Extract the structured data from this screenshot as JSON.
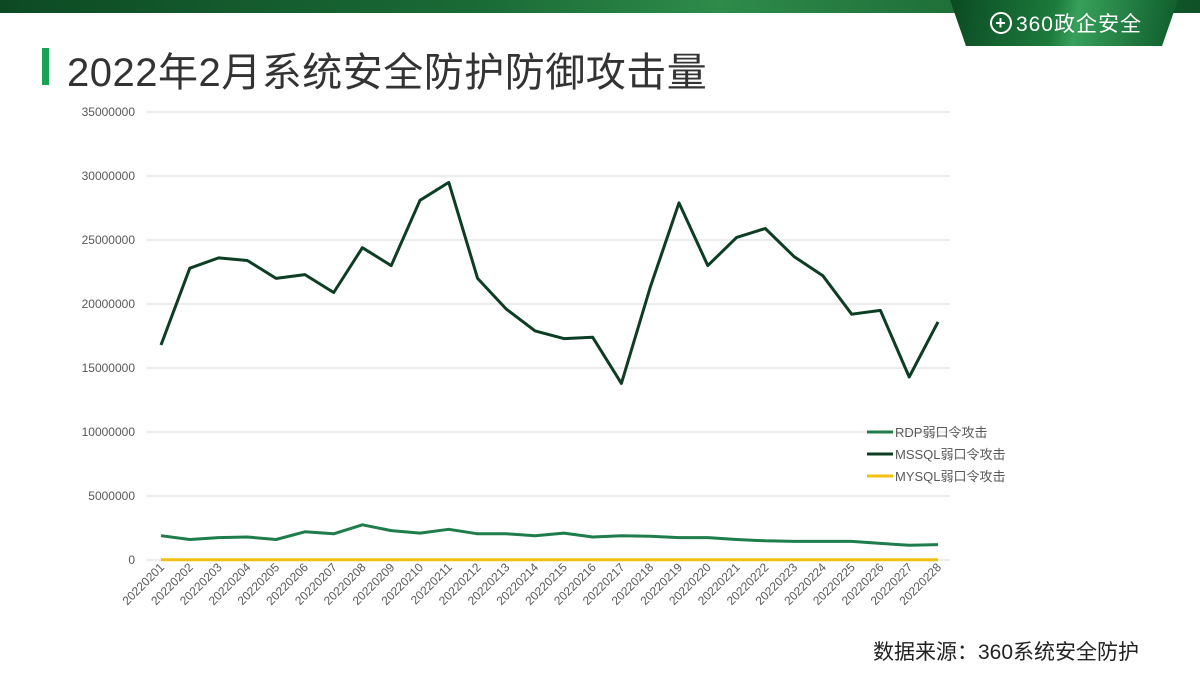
{
  "header": {
    "brand": "360政企安全",
    "brand_icon": "plus-circle-icon"
  },
  "title": "2022年2月系统安全防护防御攻击量",
  "source": "数据来源：360系统安全防护",
  "colors": {
    "rdp": "#1e7d4b",
    "mssql": "#0d3d22",
    "mysql": "#f2c012",
    "accent": "#17a352"
  },
  "chart_data": {
    "type": "line",
    "title": "2022年2月系统安全防护防御攻击量",
    "xlabel": "",
    "ylabel": "",
    "ylim": [
      0,
      35000000
    ],
    "yticks": [
      0,
      5000000,
      10000000,
      15000000,
      20000000,
      25000000,
      30000000,
      35000000
    ],
    "grid": true,
    "legend_position": "right",
    "categories": [
      "20220201",
      "20220202",
      "20220203",
      "20220204",
      "20220205",
      "20220206",
      "20220207",
      "20220208",
      "20220209",
      "20220210",
      "20220211",
      "20220212",
      "20220213",
      "20220214",
      "20220215",
      "20220216",
      "20220217",
      "20220218",
      "20220219",
      "20220220",
      "20220221",
      "20220222",
      "20220223",
      "20220224",
      "20220225",
      "20220226",
      "20220227",
      "20220228"
    ],
    "series": [
      {
        "name": "RDP弱口令攻击",
        "color": "#1e7d4b",
        "values": [
          1900000,
          1600000,
          1750000,
          1800000,
          1600000,
          2200000,
          2050000,
          2750000,
          2300000,
          2100000,
          2400000,
          2050000,
          2050000,
          1900000,
          2100000,
          1800000,
          1900000,
          1850000,
          1750000,
          1750000,
          1600000,
          1500000,
          1450000,
          1450000,
          1450000,
          1300000,
          1150000,
          1200000
        ]
      },
      {
        "name": "MSSQL弱口令攻击",
        "color": "#0d3d22",
        "values": [
          16800000,
          22800000,
          23600000,
          23400000,
          22000000,
          22300000,
          20900000,
          24400000,
          23000000,
          28100000,
          29500000,
          22000000,
          19600000,
          17900000,
          17300000,
          17400000,
          13800000,
          21300000,
          27900000,
          23000000,
          25200000,
          25900000,
          23700000,
          22200000,
          19200000,
          19500000,
          14300000,
          18600000
        ]
      },
      {
        "name": "MYSQL弱口令攻击",
        "color": "#f2c012",
        "values": [
          20000,
          20000,
          20000,
          20000,
          20000,
          20000,
          20000,
          20000,
          20000,
          20000,
          20000,
          20000,
          20000,
          20000,
          20000,
          20000,
          20000,
          20000,
          20000,
          20000,
          20000,
          20000,
          20000,
          20000,
          20000,
          20000,
          20000,
          20000
        ]
      }
    ]
  }
}
